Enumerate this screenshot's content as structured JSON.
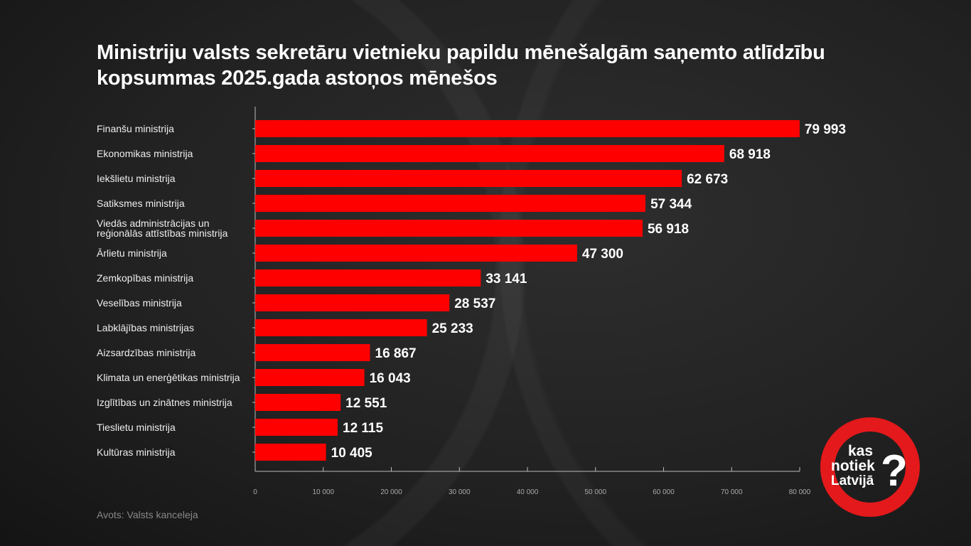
{
  "chart_data": {
    "type": "bar",
    "orientation": "horizontal",
    "title": "Ministriju valsts sekretāru vietnieku papildu mēnešalgām saņemto atlīdzību kopsummas 2025.gada astoņos mēnešos",
    "categories": [
      "Finanšu ministrija",
      "Ekonomikas ministrija",
      "Iekšlietu ministrija",
      "Satiksmes ministrija",
      "Viedās administrācijas un reģionālās attīstības ministrija",
      "Ārlietu ministrija",
      "Zemkopības ministrija",
      "Veselības ministrija",
      "Labklājības ministrijas",
      "Aizsardzības ministrija",
      "Klimata un enerģētikas ministrija",
      "Izglītības un zinātnes ministrija",
      "Tieslietu ministrija",
      "Kultūras ministrija"
    ],
    "category_lines": [
      [
        "Finanšu ministrija"
      ],
      [
        "Ekonomikas ministrija"
      ],
      [
        "Iekšlietu ministrija"
      ],
      [
        "Satiksmes ministrija"
      ],
      [
        "Viedās administrācijas un",
        "reģionālās attīstības ministrija"
      ],
      [
        "Ārlietu ministrija"
      ],
      [
        "Zemkopības ministrija"
      ],
      [
        "Veselības ministrija"
      ],
      [
        "Labklājības ministrijas"
      ],
      [
        "Aizsardzības ministrija"
      ],
      [
        "Klimata un enerģētikas ministrija"
      ],
      [
        "Izglītības un zinātnes ministrija"
      ],
      [
        "Tieslietu ministrija"
      ],
      [
        "Kultūras ministrija"
      ]
    ],
    "values": [
      79993,
      68918,
      62673,
      57344,
      56918,
      47300,
      33141,
      28537,
      25233,
      16867,
      16043,
      12551,
      12115,
      10405
    ],
    "value_labels": [
      "79 993",
      "68 918",
      "62 673",
      "57 344",
      "56 918",
      "47 300",
      "33 141",
      "28 537",
      "25 233",
      "16 867",
      "16 043",
      "12 551",
      "12 115",
      "10 405"
    ],
    "xlim": [
      0,
      80000
    ],
    "xticks": [
      0,
      10000,
      20000,
      30000,
      40000,
      50000,
      60000,
      70000,
      80000
    ],
    "xtick_labels": [
      "0",
      "10 000",
      "20 000",
      "30 000",
      "40 000",
      "50 000",
      "60 000",
      "70 000",
      "80 000"
    ],
    "xlabel": "",
    "ylabel": "",
    "grid": false,
    "bar_color": "#ff0000"
  },
  "source": "Avots: Valsts kanceleja",
  "logo": {
    "text": [
      "kas",
      "notiek",
      "Latvijā",
      "?"
    ]
  }
}
